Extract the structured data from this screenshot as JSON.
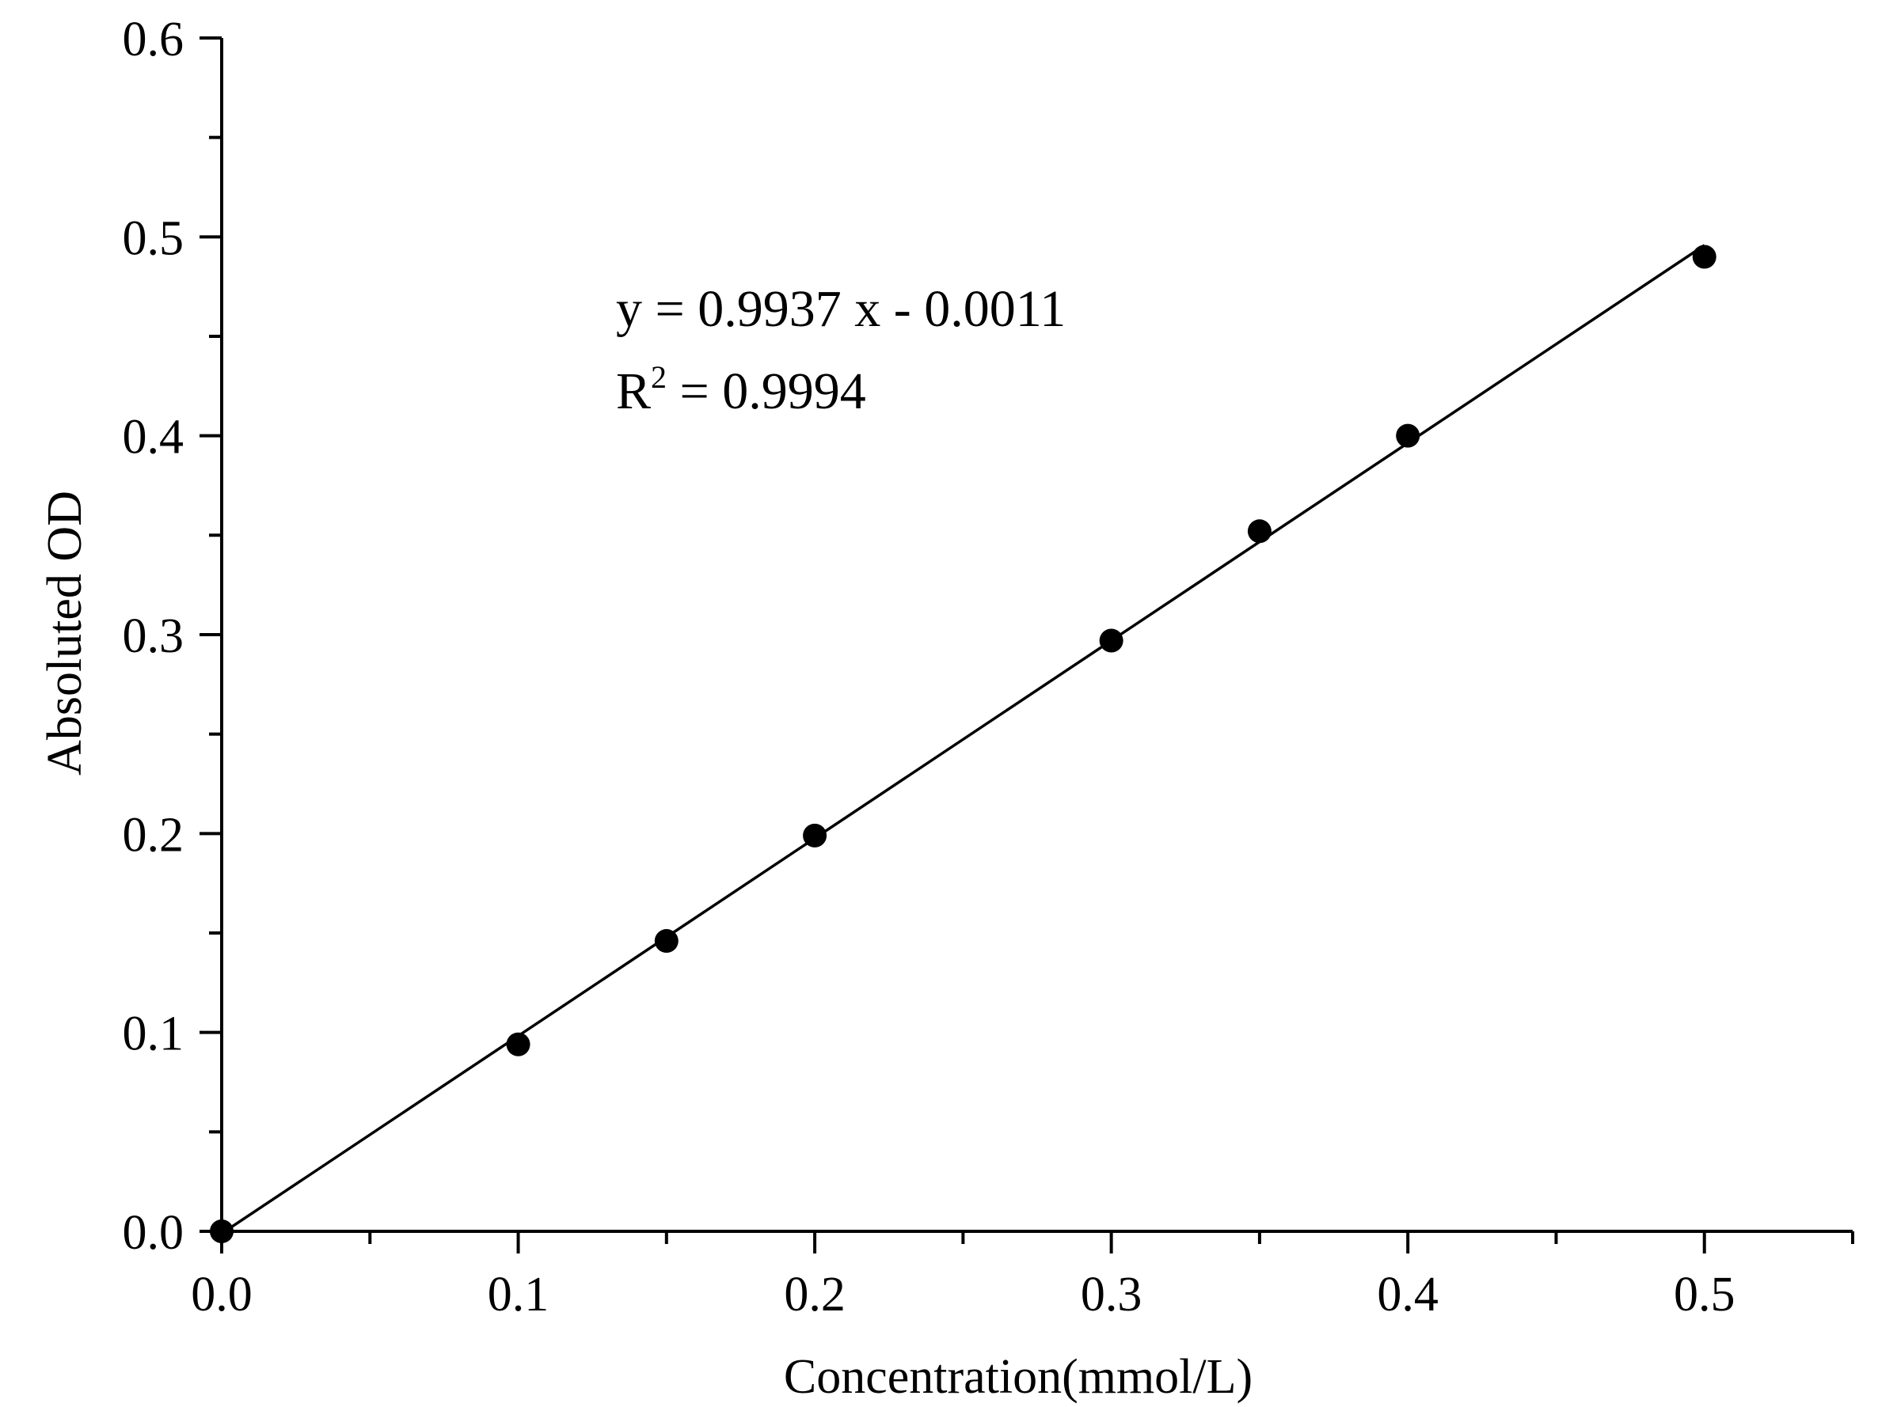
{
  "chart_data": {
    "type": "scatter",
    "title": "",
    "xlabel": "Concentration(mmol/L)",
    "ylabel": "Absoluted OD",
    "xlim": [
      0,
      0.55
    ],
    "ylim": [
      0,
      0.6
    ],
    "x_ticks": [
      0.0,
      0.1,
      0.2,
      0.3,
      0.4,
      0.5
    ],
    "x_tick_labels": [
      "0.0",
      "0.1",
      "0.2",
      "0.3",
      "0.4",
      "0.5"
    ],
    "y_ticks": [
      0.0,
      0.1,
      0.2,
      0.3,
      0.4,
      0.5,
      0.6
    ],
    "y_tick_labels": [
      "0.0",
      "0.1",
      "0.2",
      "0.3",
      "0.4",
      "0.5",
      "0.6"
    ],
    "grid": false,
    "legend": "none",
    "series": [
      {
        "x": [
          0.0,
          0.1,
          0.15,
          0.2,
          0.3,
          0.35,
          0.4,
          0.5
        ],
        "y": [
          0.0,
          0.094,
          0.146,
          0.199,
          0.297,
          0.352,
          0.4,
          0.49
        ],
        "marker": "filled-circle",
        "color": "#000000"
      }
    ],
    "fit_line": {
      "slope": 0.9937,
      "intercept": -0.0011,
      "x_range": [
        0.0,
        0.5
      ],
      "color": "#000000"
    },
    "annotations": {
      "equation": "y = 0.9937 x - 0.0011",
      "r_squared_prefix": "R",
      "r_squared_sup": "2",
      "r_squared_value": " = 0.9994"
    }
  }
}
